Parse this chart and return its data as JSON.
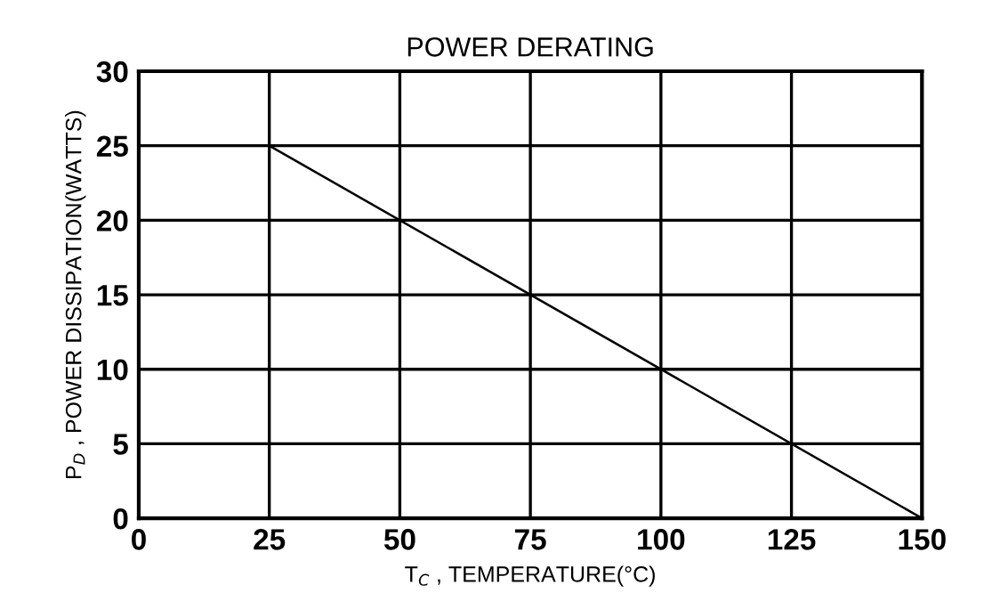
{
  "chart_data": {
    "type": "line",
    "title": "POWER DERATING",
    "xlabel": "T$_{C}$ , TEMPERATURE(°C)",
    "ylabel": "P$_{D}$ , POWER DISSIPATION(WATTS)",
    "x": [
      0,
      25,
      150
    ],
    "series": [
      {
        "color": "#000000",
        "values": [
          25,
          25,
          0
        ]
      }
    ],
    "xlim": [
      0,
      150
    ],
    "xticks": [
      0,
      25,
      50,
      75,
      100,
      125,
      150
    ],
    "ylim": [
      0,
      30
    ],
    "yticks": [
      0,
      5,
      10,
      15,
      20,
      25,
      30
    ],
    "grid": true,
    "marker": "none",
    "line_style": "solid"
  }
}
